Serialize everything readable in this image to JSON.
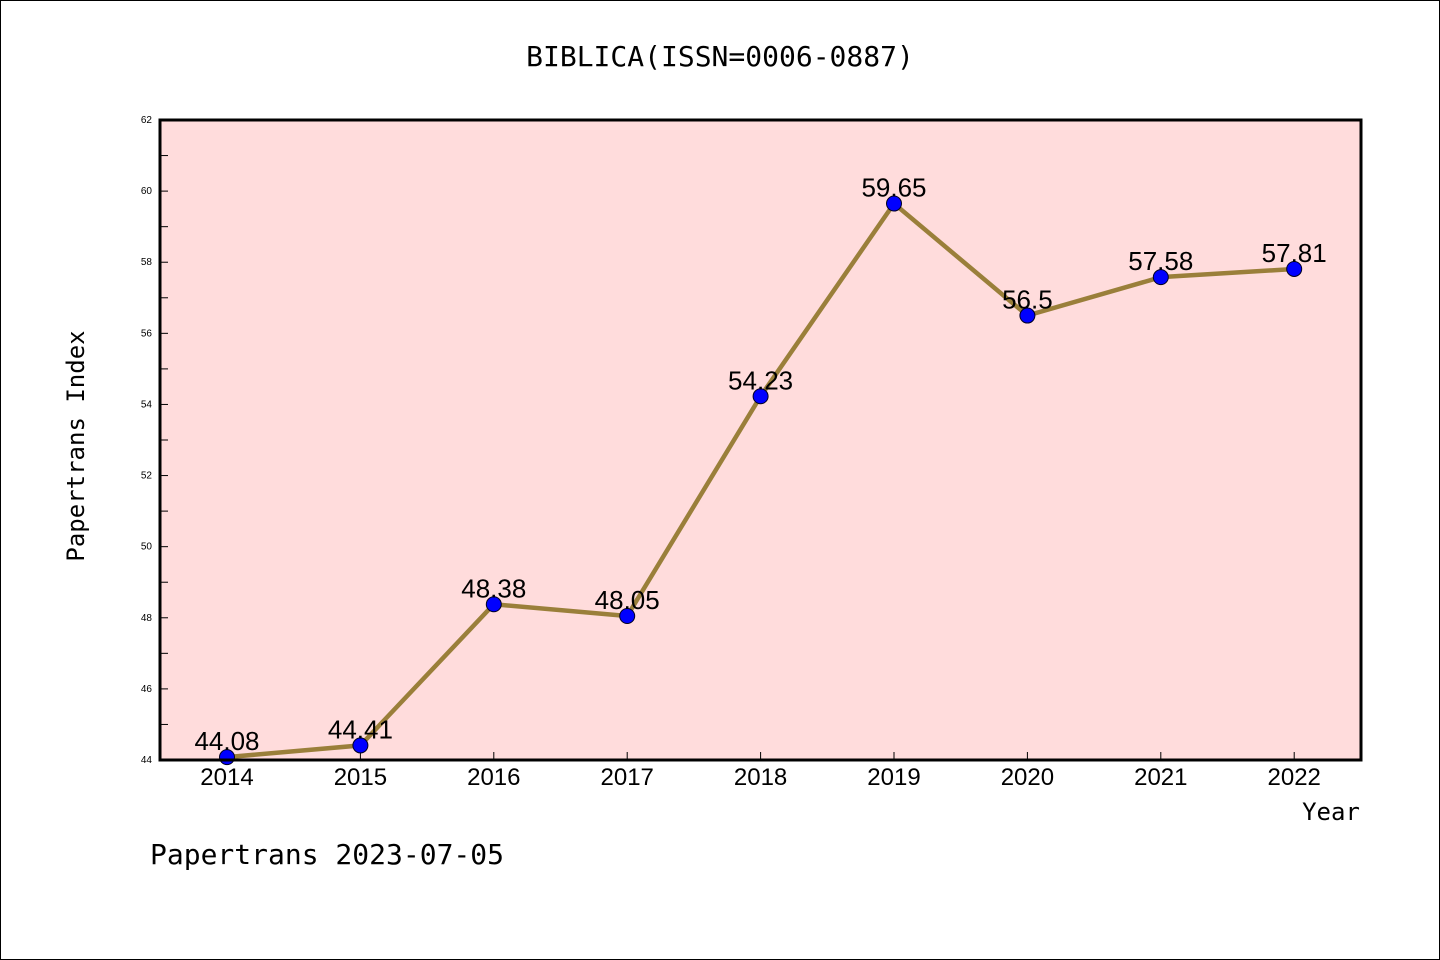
{
  "chart_data": {
    "type": "line",
    "title": "BIBLICA(ISSN=0006-0887)",
    "xlabel": "Year",
    "ylabel": "Papertrans Index",
    "categories": [
      "2014",
      "2015",
      "2016",
      "2017",
      "2018",
      "2019",
      "2020",
      "2021",
      "2022"
    ],
    "series": [
      {
        "values": [
          44.08,
          44.41,
          48.38,
          48.05,
          54.23,
          59.65,
          56.5,
          57.58,
          57.81
        ],
        "labels": [
          "44.08",
          "44.41",
          "48.38",
          "48.05",
          "54.23",
          "59.65",
          "56.5",
          "57.58",
          "57.81"
        ]
      }
    ],
    "ylim": [
      44,
      62
    ],
    "yticks": [
      "44",
      "46",
      "48",
      "50",
      "52",
      "54",
      "56",
      "58",
      "60",
      "62"
    ],
    "grid": false,
    "colors": {
      "plot_background": "#ffdcdc",
      "line": "#9a7f3a",
      "marker": "#0000ff"
    }
  },
  "footer": "Papertrans 2023-07-05"
}
